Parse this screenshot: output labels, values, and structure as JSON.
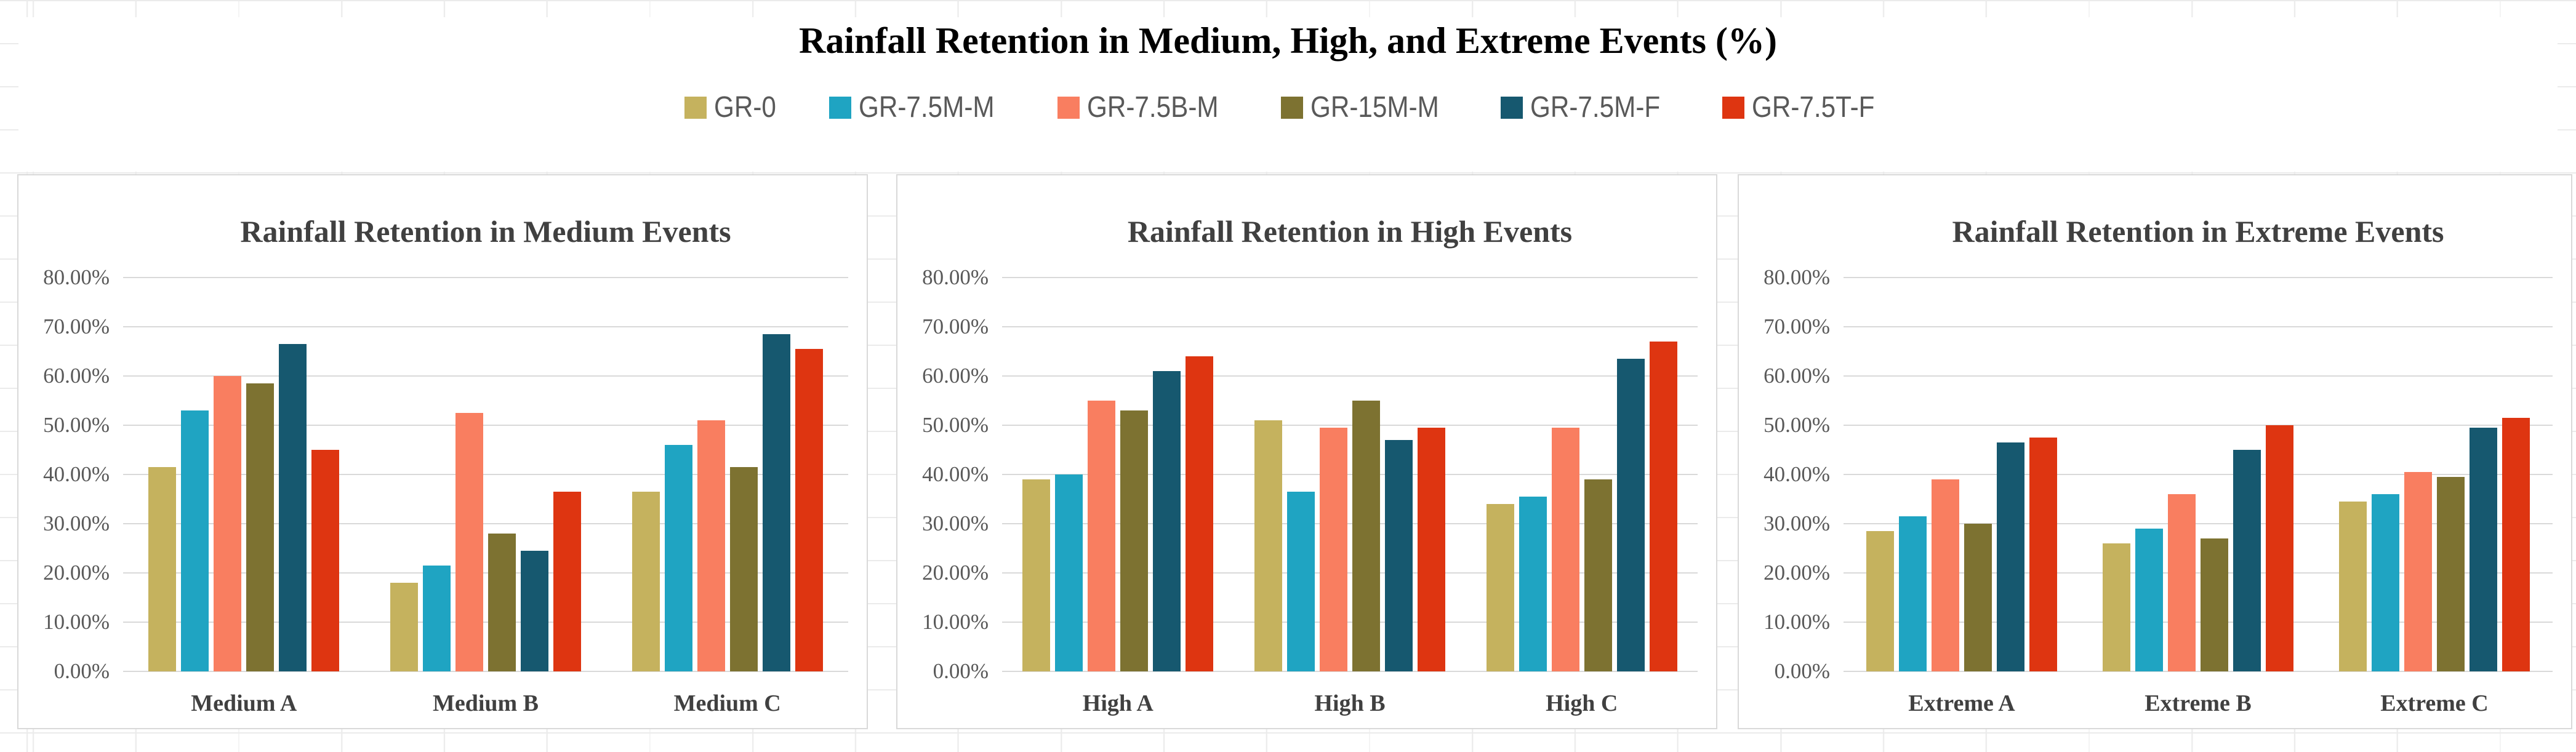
{
  "header": {
    "title": "Rainfall Retention in Medium, High, and Extreme Events (%)"
  },
  "legend": {
    "items": [
      {
        "label": "GR-0",
        "color": "#C5B25E"
      },
      {
        "label": "GR-7.5M-M",
        "color": "#1FA4C2"
      },
      {
        "label": "GR-7.5B-M",
        "color": "#F97E60"
      },
      {
        "label": "GR-15M-M",
        "color": "#7D7231"
      },
      {
        "label": "GR-7.5M-F",
        "color": "#16586F"
      },
      {
        "label": "GR-7.5T-F",
        "color": "#DE3511"
      }
    ]
  },
  "y_axis": {
    "min": 0,
    "max": 80,
    "unit": "%",
    "tick_labels_bottom_to_top": [
      "0.00%",
      "10.00%",
      "20.00%",
      "30.00%",
      "40.00%",
      "50.00%",
      "60.00%",
      "70.00%",
      "80.00%"
    ]
  },
  "styles": {
    "gridline_color": "#d9d9d9",
    "panel_border_color": "#d9d9d9",
    "axis_text_color": "#595959",
    "panel_title_color": "#404040"
  },
  "chart_data": [
    {
      "type": "bar",
      "title": "Rainfall Retention in Medium Events",
      "categories": [
        "Medium A",
        "Medium B",
        "Medium C"
      ],
      "ylim": [
        0,
        80
      ],
      "grid": true,
      "series": [
        {
          "name": "GR-0",
          "values": [
            41.5,
            18.0,
            36.5
          ]
        },
        {
          "name": "GR-7.5M-M",
          "values": [
            53.0,
            21.5,
            46.0
          ]
        },
        {
          "name": "GR-7.5B-M",
          "values": [
            60.0,
            52.5,
            51.0
          ]
        },
        {
          "name": "GR-15M-M",
          "values": [
            58.5,
            28.0,
            41.5
          ]
        },
        {
          "name": "GR-7.5M-F",
          "values": [
            66.5,
            24.5,
            68.5
          ]
        },
        {
          "name": "GR-7.5T-F",
          "values": [
            45.0,
            36.5,
            65.5
          ]
        }
      ]
    },
    {
      "type": "bar",
      "title": "Rainfall Retention in High Events",
      "categories": [
        "High A",
        "High B",
        "High C"
      ],
      "ylim": [
        0,
        80
      ],
      "grid": true,
      "series": [
        {
          "name": "GR-0",
          "values": [
            39.0,
            51.0,
            34.0
          ]
        },
        {
          "name": "GR-7.5M-M",
          "values": [
            40.0,
            36.5,
            35.5
          ]
        },
        {
          "name": "GR-7.5B-M",
          "values": [
            55.0,
            49.5,
            49.5
          ]
        },
        {
          "name": "GR-15M-M",
          "values": [
            53.0,
            55.0,
            39.0
          ]
        },
        {
          "name": "GR-7.5M-F",
          "values": [
            61.0,
            47.0,
            63.5
          ]
        },
        {
          "name": "GR-7.5T-F",
          "values": [
            64.0,
            49.5,
            67.0
          ]
        }
      ]
    },
    {
      "type": "bar",
      "title": "Rainfall Retention in Extreme Events",
      "categories": [
        "Extreme A",
        "Extreme B",
        "Extreme C"
      ],
      "ylim": [
        0,
        80
      ],
      "grid": true,
      "series": [
        {
          "name": "GR-0",
          "values": [
            28.5,
            26.0,
            34.5
          ]
        },
        {
          "name": "GR-7.5M-M",
          "values": [
            31.5,
            29.0,
            36.0
          ]
        },
        {
          "name": "GR-7.5B-M",
          "values": [
            39.0,
            36.0,
            40.5
          ]
        },
        {
          "name": "GR-15M-M",
          "values": [
            30.0,
            27.0,
            39.5
          ]
        },
        {
          "name": "GR-7.5M-F",
          "values": [
            46.5,
            45.0,
            49.5
          ]
        },
        {
          "name": "GR-7.5T-F",
          "values": [
            47.5,
            50.0,
            51.5
          ]
        }
      ]
    }
  ]
}
